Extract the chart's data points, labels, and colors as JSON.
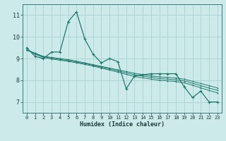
{
  "xlabel": "Humidex (Indice chaleur)",
  "background_color": "#cdeaea",
  "grid_color": "#afd4d4",
  "line_color": "#1e7a6e",
  "xlim": [
    -0.5,
    23.5
  ],
  "ylim": [
    6.5,
    11.5
  ],
  "yticks": [
    7,
    8,
    9,
    10,
    11
  ],
  "xticks": [
    0,
    1,
    2,
    3,
    4,
    5,
    6,
    7,
    8,
    9,
    10,
    11,
    12,
    13,
    14,
    15,
    16,
    17,
    18,
    19,
    20,
    21,
    22,
    23
  ],
  "series_main": [
    9.5,
    9.1,
    9.0,
    9.3,
    9.3,
    10.7,
    11.15,
    9.9,
    9.2,
    8.8,
    9.0,
    8.85,
    7.6,
    8.2,
    8.25,
    8.3,
    8.3,
    8.3,
    8.3,
    7.7,
    7.2,
    7.5,
    7.0,
    7.0
  ],
  "series_trend1": [
    9.4,
    9.25,
    9.1,
    9.05,
    9.0,
    8.95,
    8.88,
    8.8,
    8.72,
    8.64,
    8.56,
    8.48,
    8.4,
    8.32,
    8.26,
    8.2,
    8.16,
    8.13,
    8.1,
    8.05,
    7.95,
    7.85,
    7.75,
    7.65
  ],
  "series_trend2": [
    9.4,
    9.2,
    9.05,
    8.98,
    8.92,
    8.87,
    8.8,
    8.73,
    8.65,
    8.56,
    8.47,
    8.37,
    8.27,
    8.17,
    8.11,
    8.05,
    8.0,
    7.97,
    7.94,
    7.88,
    7.77,
    7.65,
    7.53,
    7.42
  ],
  "series_trend3": [
    9.4,
    9.22,
    9.08,
    9.02,
    8.96,
    8.91,
    8.84,
    8.77,
    8.69,
    8.6,
    8.52,
    8.43,
    8.34,
    8.25,
    8.19,
    8.13,
    8.08,
    8.05,
    8.02,
    7.97,
    7.86,
    7.75,
    7.64,
    7.54
  ]
}
